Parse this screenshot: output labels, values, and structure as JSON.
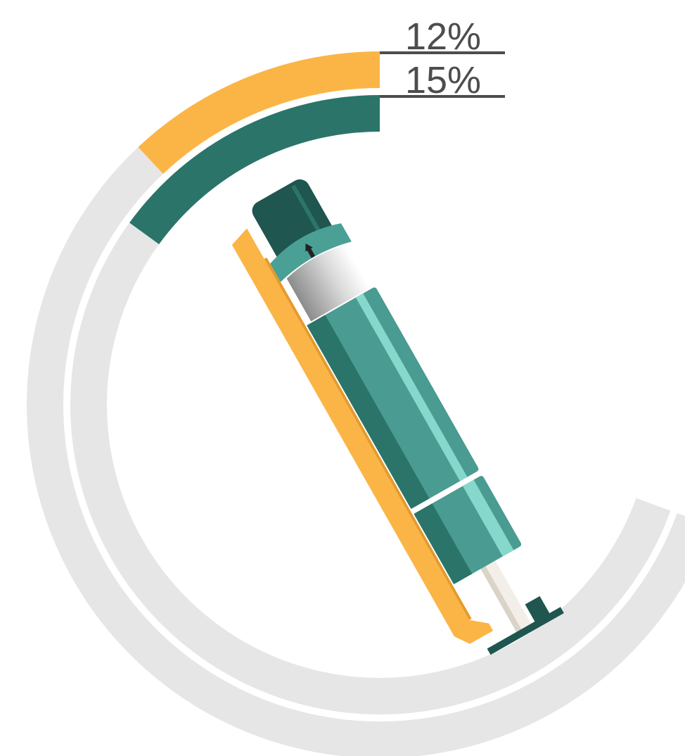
{
  "chart_data": {
    "type": "radial_bar",
    "values": [
      12,
      15
    ],
    "value_labels": [
      "12%",
      "15%"
    ],
    "colors": [
      "#fbb546",
      "#2b7469"
    ],
    "track_color": "#e6e6e6",
    "ylim": [
      0,
      100
    ]
  }
}
